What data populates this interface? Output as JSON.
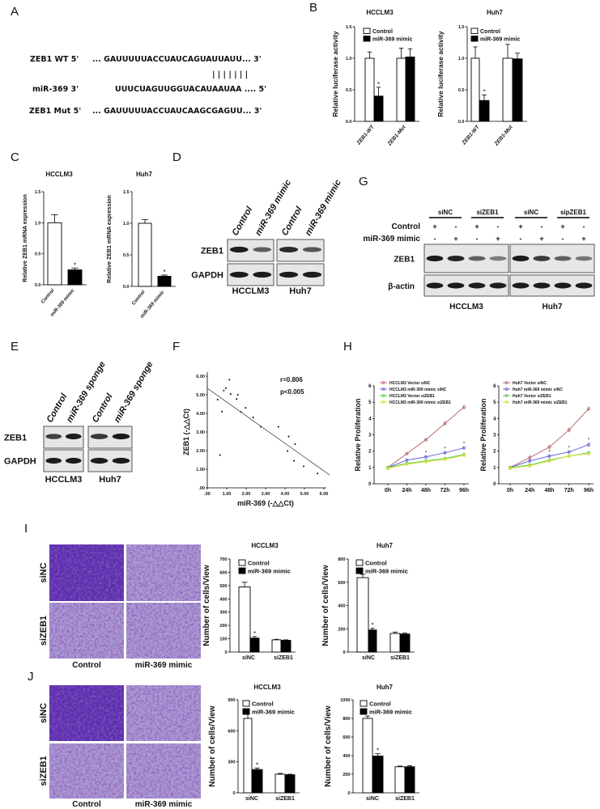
{
  "panel_labels": {
    "A": "A",
    "B": "B",
    "C": "C",
    "D": "D",
    "E": "E",
    "F": "F",
    "G": "G",
    "H": "H",
    "I": "I",
    "J": "J"
  },
  "panel_a": {
    "wt_label": "ZEB1 WT 5'",
    "wt_seq": "... GAUUUUUACCUAUCAGUAUUAUU... 3'",
    "pairing": "| | | | | | |",
    "mir_label": "miR-369  3'",
    "mir_seq": "UUUCUAGUUGGUACAUAAUAA .... 5'",
    "mut_label": "ZEB1 Mut 5'",
    "mut_seq": "... GAUUUUUACCUAUCAAGCGAGUU... 3'"
  },
  "chart_data": [
    {
      "type": "bar",
      "title": "HCCLM3",
      "ylabel": "Relative luciferase activity",
      "categories": [
        "ZEB1-WT",
        "ZEB1-Mut"
      ],
      "series": [
        {
          "name": "Control",
          "values": [
            1.0,
            1.0
          ],
          "errors": [
            0.1,
            0.16
          ],
          "color": "#ffffff"
        },
        {
          "name": "miR-369 mimic",
          "values": [
            0.4,
            1.02
          ],
          "errors": [
            0.14,
            0.13
          ],
          "color": "#000000"
        }
      ],
      "ylim": [
        0,
        1.5
      ],
      "yticks": [
        0,
        0.5,
        1.0,
        1.5
      ],
      "ytick_labels": [
        "0.0",
        "0.5",
        "1.0",
        "1.5"
      ],
      "significance": [
        {
          "category": 0,
          "series": 1,
          "label": "*"
        }
      ],
      "legend": "top-left"
    },
    {
      "type": "bar",
      "title": "Huh7",
      "ylabel": "Relative luciferase activity",
      "categories": [
        "ZEB1-WT",
        "ZEB1-Mut"
      ],
      "series": [
        {
          "name": "Control",
          "values": [
            1.0,
            1.0
          ],
          "errors": [
            0.18,
            0.22
          ],
          "color": "#ffffff"
        },
        {
          "name": "miR-369 mimic",
          "values": [
            0.33,
            0.99
          ],
          "errors": [
            0.09,
            0.09
          ],
          "color": "#000000"
        }
      ],
      "ylim": [
        0,
        1.5
      ],
      "yticks": [
        0,
        0.5,
        1.0,
        1.5
      ],
      "ytick_labels": [
        "0.0",
        "0.5",
        "1.0",
        "1.5"
      ],
      "significance": [
        {
          "category": 0,
          "series": 1,
          "label": "*"
        }
      ],
      "legend": "top-left"
    },
    {
      "type": "bar",
      "title": "HCCLM3",
      "ylabel": "Relative ZEB1 mRNA expression",
      "categories": [
        "Control",
        "miR-369 mimic"
      ],
      "series": [
        {
          "values": [
            1.0,
            0.24
          ],
          "errors": [
            0.13,
            0.03
          ],
          "colors": [
            "#ffffff",
            "#000000"
          ]
        }
      ],
      "ylim": [
        0,
        1.5
      ],
      "yticks": [
        0,
        0.5,
        1.0,
        1.5
      ],
      "ytick_labels": [
        "0.0",
        "0.5",
        "1.0",
        "1.5"
      ],
      "significance": [
        {
          "category": 1,
          "series": 0,
          "label": "*"
        }
      ]
    },
    {
      "type": "bar",
      "title": "Huh7",
      "ylabel": "Relative ZEB1 mRNA expression",
      "categories": [
        "Control",
        "miR-369 mimic"
      ],
      "series": [
        {
          "values": [
            1.0,
            0.16
          ],
          "errors": [
            0.06,
            0.02
          ],
          "colors": [
            "#ffffff",
            "#000000"
          ]
        }
      ],
      "ylim": [
        0,
        1.5
      ],
      "yticks": [
        0,
        0.5,
        1.0,
        1.5
      ],
      "ytick_labels": [
        "0.0",
        "0.5",
        "1.0",
        "1.5"
      ],
      "significance": [
        {
          "category": 1,
          "series": 0,
          "label": "*"
        }
      ]
    },
    {
      "type": "scatter",
      "xlabel": "miR-369 (-△△Ct)",
      "ylabel": "ZEB1 (-△△Ct)",
      "xlim": [
        0,
        6
      ],
      "ylim": [
        0,
        6
      ],
      "xticks": [
        0,
        1,
        2,
        3,
        4,
        5,
        6
      ],
      "xtick_labels": [
        ".00",
        "1.00",
        "2.00",
        "3.00",
        "4.00",
        "5.00",
        "6.00"
      ],
      "yticks": [
        0,
        1,
        2,
        3,
        4,
        5,
        6
      ],
      "ytick_labels": [
        ".00",
        "1.00",
        "2.00",
        "3.00",
        "4.00",
        "5.00",
        "6.00"
      ],
      "points": [
        [
          0.53,
          4.74
        ],
        [
          0.75,
          4.1
        ],
        [
          0.65,
          1.76
        ],
        [
          0.85,
          5.23
        ],
        [
          0.96,
          5.36
        ],
        [
          1.14,
          5.81
        ],
        [
          1.2,
          5.04
        ],
        [
          1.51,
          4.77
        ],
        [
          1.57,
          5.0
        ],
        [
          1.73,
          4.08
        ],
        [
          1.97,
          4.3
        ],
        [
          2.36,
          3.78
        ],
        [
          2.75,
          3.28
        ],
        [
          3.66,
          3.28
        ],
        [
          4.13,
          1.98
        ],
        [
          4.19,
          2.76
        ],
        [
          4.46,
          1.45
        ],
        [
          4.52,
          2.35
        ],
        [
          4.96,
          1.16
        ],
        [
          5.67,
          0.77
        ]
      ],
      "fit": {
        "intercept": 5.35,
        "slope": -0.74
      },
      "annotations": [
        "r=0.806",
        "p<0.005"
      ]
    },
    {
      "type": "line",
      "ylabel": "Relative Proliferation",
      "categories": [
        "0h",
        "24h",
        "48h",
        "72h",
        "96h"
      ],
      "ylim": [
        0,
        6
      ],
      "yticks": [
        0,
        1,
        2,
        3,
        4,
        5,
        6
      ],
      "ytick_labels": [
        "0",
        "1",
        "2",
        "3",
        "4",
        "5",
        "6"
      ],
      "series": [
        {
          "name": "HCCLM3 Vector siNC",
          "values": [
            1.0,
            1.85,
            2.7,
            3.7,
            4.7
          ],
          "errors": [
            0.08,
            0.08,
            0.08,
            0.15,
            0.15
          ],
          "color": "#b8706e"
        },
        {
          "name": "HCCLM3 miR-369 mimic siNC",
          "values": [
            1.0,
            1.45,
            1.65,
            1.9,
            2.2
          ],
          "errors": [
            0.08,
            0.08,
            0.1,
            0.1,
            0.12
          ],
          "color": "#6b6bd6"
        },
        {
          "name": "HCCLM3 Vector siZEB1",
          "values": [
            1.0,
            1.25,
            1.4,
            1.55,
            1.8
          ],
          "errors": [
            0.06,
            0.06,
            0.06,
            0.06,
            0.08
          ],
          "color": "#55d055"
        },
        {
          "name": "HCCLM3 miR-369 mimic siZEB1",
          "values": [
            0.95,
            1.2,
            1.35,
            1.5,
            1.75
          ],
          "errors": [
            0.05,
            0.05,
            0.05,
            0.05,
            0.06
          ],
          "color": "#dede3a"
        }
      ],
      "significance": [
        {
          "category": 2,
          "series": 1,
          "label": "*"
        },
        {
          "category": 3,
          "series": 1,
          "label": "*"
        },
        {
          "category": 4,
          "series": 1,
          "label": "*"
        }
      ],
      "legend": "top-left"
    },
    {
      "type": "line",
      "ylabel": "Relative Proliferation",
      "categories": [
        "0h",
        "24h",
        "48h",
        "72h",
        "96h"
      ],
      "ylim": [
        0,
        6
      ],
      "yticks": [
        0,
        1,
        2,
        3,
        4,
        5,
        6
      ],
      "ytick_labels": [
        "0",
        "1",
        "2",
        "3",
        "4",
        "5",
        "6"
      ],
      "series": [
        {
          "name": "Huh7 Vector siNC",
          "values": [
            1.0,
            1.6,
            2.25,
            3.3,
            4.6
          ],
          "errors": [
            0.1,
            0.2,
            0.15,
            0.15,
            0.15
          ],
          "color": "#b8706e"
        },
        {
          "name": "Huh7 miR-369 mimic siNC",
          "values": [
            1.0,
            1.4,
            1.7,
            1.95,
            2.4
          ],
          "errors": [
            0.08,
            0.1,
            0.1,
            0.1,
            0.15
          ],
          "color": "#6b6bd6"
        },
        {
          "name": "Huh7 Vector siZEB1",
          "values": [
            1.0,
            1.15,
            1.45,
            1.7,
            1.9
          ],
          "errors": [
            0.06,
            0.06,
            0.08,
            0.08,
            0.1
          ],
          "color": "#55d055"
        },
        {
          "name": "Huh7 miR-369 mimic siZEB1",
          "values": [
            0.95,
            1.1,
            1.4,
            1.7,
            1.85
          ],
          "errors": [
            0.05,
            0.05,
            0.06,
            0.06,
            0.08
          ],
          "color": "#dede3a"
        }
      ],
      "significance": [
        {
          "category": 2,
          "series": 1,
          "label": "*"
        },
        {
          "category": 3,
          "series": 1,
          "label": "*"
        },
        {
          "category": 4,
          "series": 1,
          "label": "*"
        }
      ],
      "legend": "top-left"
    },
    {
      "type": "bar",
      "title": "HCCLM3",
      "ylabel": "Number of cells/View",
      "categories": [
        "siNC",
        "siZEB1"
      ],
      "series": [
        {
          "name": "Control",
          "values": [
            490,
            92
          ],
          "errors": [
            35,
            4
          ],
          "color": "#ffffff"
        },
        {
          "name": "miR-369 mimic",
          "values": [
            105,
            88
          ],
          "errors": [
            12,
            4
          ],
          "color": "#000000"
        }
      ],
      "ylim": [
        0,
        700
      ],
      "yticks": [
        0,
        100,
        200,
        300,
        400,
        500,
        600,
        700
      ],
      "ytick_labels": [
        "0",
        "100",
        "200",
        "300",
        "400",
        "500",
        "600",
        "700"
      ],
      "significance": [
        {
          "category": 0,
          "series": 1,
          "label": "*"
        }
      ],
      "legend": "top-left"
    },
    {
      "type": "bar",
      "title": "Huh7",
      "ylabel": "Number of cells/View",
      "categories": [
        "siNC",
        "siZEB1"
      ],
      "series": [
        {
          "name": "Control",
          "values": [
            640,
            160
          ],
          "errors": [
            28,
            12
          ],
          "color": "#ffffff"
        },
        {
          "name": "miR-369 mimic",
          "values": [
            190,
            155
          ],
          "errors": [
            15,
            8
          ],
          "color": "#000000"
        }
      ],
      "ylim": [
        0,
        800
      ],
      "yticks": [
        0,
        200,
        400,
        600,
        800
      ],
      "ytick_labels": [
        "0",
        "200",
        "400",
        "600",
        "800"
      ],
      "significance": [
        {
          "category": 0,
          "series": 1,
          "label": "*"
        }
      ],
      "legend": "top-left"
    },
    {
      "type": "bar",
      "title": "HCCLM3",
      "ylabel": "Number of cells/View",
      "categories": [
        "siNC",
        "siZEB1"
      ],
      "series": [
        {
          "name": "Control",
          "values": [
            720,
            180
          ],
          "errors": [
            40,
            8
          ],
          "color": "#ffffff"
        },
        {
          "name": "miR-369 mimic",
          "values": [
            225,
            175
          ],
          "errors": [
            15,
            5
          ],
          "color": "#000000"
        }
      ],
      "ylim": [
        0,
        900
      ],
      "yticks": [
        0,
        300,
        600,
        900
      ],
      "ytick_labels": [
        "0",
        "300",
        "600",
        "900"
      ],
      "significance": [
        {
          "category": 0,
          "series": 1,
          "label": "*"
        }
      ],
      "legend": "top-left"
    },
    {
      "type": "bar",
      "title": "Huh7",
      "ylabel": "Number of cells/View",
      "categories": [
        "siNC",
        "siZEB1"
      ],
      "series": [
        {
          "name": "Control",
          "values": [
            800,
            280
          ],
          "errors": [
            25,
            8
          ],
          "color": "#ffffff"
        },
        {
          "name": "miR-369 mimic",
          "values": [
            395,
            280
          ],
          "errors": [
            25,
            12
          ],
          "color": "#000000"
        }
      ],
      "ylim": [
        0,
        1000
      ],
      "yticks": [
        0,
        200,
        400,
        600,
        800,
        1000
      ],
      "ytick_labels": [
        "0",
        "200",
        "400",
        "600",
        "800",
        "1000"
      ],
      "significance": [
        {
          "category": 0,
          "series": 1,
          "label": "*"
        }
      ],
      "legend": "top-left"
    }
  ],
  "blots": [
    {
      "panel": "D",
      "lanes": [
        "Control",
        "miR-369 mimic",
        "Control",
        "miR-369 mimic"
      ],
      "cells": [
        "HCCLM3",
        "Huh7"
      ],
      "rows": [
        {
          "label": "ZEB1",
          "intensity": [
            1.0,
            0.55,
            0.9,
            0.6
          ]
        },
        {
          "label": "GAPDH",
          "intensity": [
            1,
            1,
            1,
            1
          ]
        }
      ]
    },
    {
      "panel": "E",
      "lanes": [
        "Control",
        "miR-369 sponge",
        "Control",
        "miR-369 sponge"
      ],
      "cells": [
        "HCCLM3",
        "Huh7"
      ],
      "rows": [
        {
          "label": "ZEB1",
          "intensity": [
            0.75,
            1.0,
            0.8,
            1.0
          ]
        },
        {
          "label": "GAPDH",
          "intensity": [
            1,
            1,
            1,
            1
          ]
        }
      ]
    },
    {
      "panel": "G",
      "groups": [
        "siNC",
        "siZEB1",
        "siNC",
        "sipZEB1"
      ],
      "cells": [
        "HCCLM3",
        "Huh7"
      ],
      "conditions": [
        {
          "label": "Control",
          "marks": [
            "+",
            "-",
            "+",
            "-",
            "+",
            "-",
            "+",
            "-"
          ]
        },
        {
          "label": "miR-369 mimic",
          "marks": [
            "-",
            "+",
            "-",
            "+",
            "-",
            "+",
            "-",
            "+"
          ]
        }
      ],
      "rows": [
        {
          "label": "ZEB1",
          "intensity": [
            1.0,
            0.95,
            0.55,
            0.35,
            1.0,
            0.8,
            0.55,
            0.4
          ]
        },
        {
          "label": "β-actin",
          "intensity": [
            1,
            1,
            1,
            1,
            1,
            1,
            1,
            1
          ]
        }
      ]
    }
  ],
  "micrographs": [
    {
      "panel": "I",
      "rows": [
        "siNC",
        "siZEB1"
      ],
      "columns": [
        "Control",
        "miR-369 mimic"
      ],
      "density": [
        [
          1.0,
          0.55
        ],
        [
          0.5,
          0.55
        ]
      ]
    },
    {
      "panel": "J",
      "rows": [
        "siNC",
        "siZEB1"
      ],
      "columns": [
        "Control",
        "miR-369 mimic"
      ],
      "density": [
        [
          1.0,
          0.5
        ],
        [
          0.55,
          0.5
        ]
      ]
    }
  ]
}
